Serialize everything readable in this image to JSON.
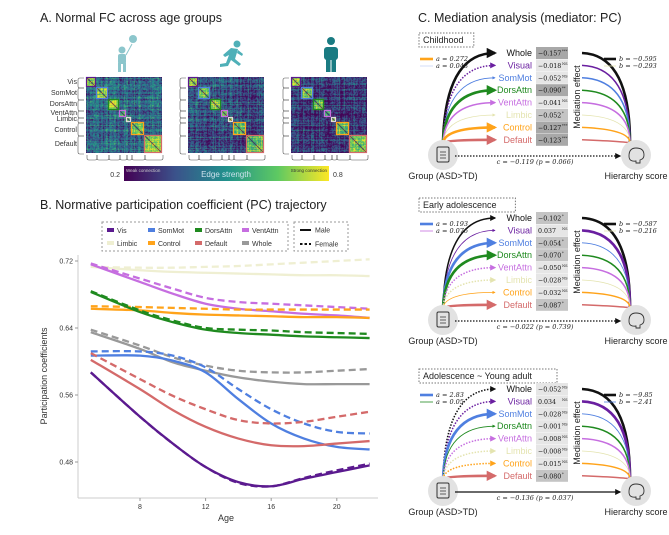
{
  "panel_a": {
    "title": "A. Normal FC across age groups",
    "age_group_icons": [
      "child-with-balloon-icon",
      "running-adolescent-icon",
      "adult-icon"
    ],
    "icon_colors": [
      "#8cc6cc",
      "#4fb0b8",
      "#1a7b82"
    ],
    "networks": [
      "Vis",
      "SomMot",
      "DorsAttn",
      "VentAttn",
      "Limbic",
      "Control",
      "Default"
    ],
    "network_box_colors": [
      "#5b1a8f",
      "#4f7fe0",
      "#1f8a1f",
      "#c66ee0",
      "#dddddd",
      "#ffa31a",
      "#d46a6a"
    ],
    "colorbar": {
      "min_label": "0.2",
      "max_label": "0.8",
      "title": "Edge strength",
      "weak_label": "Weak connection",
      "strong_label": "Strong connection",
      "colormap": "viridis"
    }
  },
  "panel_b": {
    "title": "B. Normative participation coefficient (PC) trajectory",
    "legend_networks": [
      {
        "name": "Vis",
        "color": "#5b1a8f"
      },
      {
        "name": "SomMot",
        "color": "#4f7fe0"
      },
      {
        "name": "DorsAttn",
        "color": "#1f8a1f"
      },
      {
        "name": "VentAttn",
        "color": "#c66ee0"
      },
      {
        "name": "Limbic",
        "color": "#efefd2"
      },
      {
        "name": "Control",
        "color": "#ffa31a"
      },
      {
        "name": "Default",
        "color": "#d46a6a"
      },
      {
        "name": "Whole",
        "color": "#999999"
      }
    ],
    "legend_sex": [
      {
        "name": "Male",
        "style": "solid"
      },
      {
        "name": "Female",
        "style": "dashed"
      }
    ]
  },
  "chart_data": {
    "type": "line",
    "xlabel": "Age",
    "ylabel": "Participation coefficients",
    "xlim": [
      4,
      22.5
    ],
    "ylim": [
      0.437,
      0.73
    ],
    "xticks": [
      "8",
      "12",
      "16",
      "20"
    ],
    "yticks": [
      "0.48",
      "0.56",
      "0.64",
      "0.72"
    ],
    "x": [
      5,
      8,
      10,
      12,
      14,
      16,
      18,
      20,
      22
    ],
    "series": [
      {
        "network": "Limbic",
        "sex": "Male",
        "values": [
          0.713,
          0.709,
          0.707,
          0.706,
          0.705,
          0.704,
          0.703,
          0.703,
          0.702
        ]
      },
      {
        "network": "Limbic",
        "sex": "Female",
        "values": [
          0.713,
          0.712,
          0.712,
          0.713,
          0.714,
          0.716,
          0.718,
          0.72,
          0.722
        ]
      },
      {
        "network": "VentAttn",
        "sex": "Male",
        "values": [
          0.716,
          0.695,
          0.681,
          0.669,
          0.663,
          0.66,
          0.657,
          0.655,
          0.652
        ]
      },
      {
        "network": "VentAttn",
        "sex": "Female",
        "values": [
          0.717,
          0.699,
          0.687,
          0.676,
          0.671,
          0.669,
          0.667,
          0.665,
          0.663
        ]
      },
      {
        "network": "Control",
        "sex": "Male",
        "values": [
          0.663,
          0.661,
          0.658,
          0.656,
          0.655,
          0.654,
          0.653,
          0.653,
          0.652
        ]
      },
      {
        "network": "Control",
        "sex": "Female",
        "values": [
          0.666,
          0.665,
          0.664,
          0.663,
          0.662,
          0.662,
          0.662,
          0.662,
          0.662
        ]
      },
      {
        "network": "DorsAttn",
        "sex": "Male",
        "values": [
          0.683,
          0.659,
          0.647,
          0.638,
          0.634,
          0.632,
          0.63,
          0.629,
          0.628
        ]
      },
      {
        "network": "DorsAttn",
        "sex": "Female",
        "values": [
          0.684,
          0.661,
          0.649,
          0.64,
          0.638,
          0.637,
          0.635,
          0.634,
          0.633
        ]
      },
      {
        "network": "Whole",
        "sex": "Male",
        "values": [
          0.635,
          0.615,
          0.599,
          0.589,
          0.581,
          0.576,
          0.573,
          0.573,
          0.573
        ]
      },
      {
        "network": "Whole",
        "sex": "Female",
        "values": [
          0.638,
          0.619,
          0.605,
          0.595,
          0.589,
          0.587,
          0.587,
          0.589,
          0.591
        ]
      },
      {
        "network": "SomMot",
        "sex": "Male",
        "values": [
          0.607,
          0.607,
          0.601,
          0.587,
          0.555,
          0.526,
          0.508,
          0.498,
          0.495
        ]
      },
      {
        "network": "SomMot",
        "sex": "Female",
        "values": [
          0.612,
          0.612,
          0.607,
          0.593,
          0.567,
          0.543,
          0.526,
          0.516,
          0.514
        ]
      },
      {
        "network": "Default",
        "sex": "Male",
        "values": [
          0.602,
          0.567,
          0.542,
          0.522,
          0.508,
          0.5,
          0.499,
          0.502,
          0.505
        ]
      },
      {
        "network": "Default",
        "sex": "Female",
        "values": [
          0.61,
          0.579,
          0.559,
          0.543,
          0.53,
          0.526,
          0.528,
          0.534,
          0.54
        ]
      },
      {
        "network": "Vis",
        "sex": "Male",
        "values": [
          0.587,
          0.534,
          0.502,
          0.474,
          0.456,
          0.451,
          0.46,
          0.468,
          0.476
        ]
      },
      {
        "network": "Vis",
        "sex": "Female",
        "values": [
          0.587,
          0.534,
          0.502,
          0.474,
          0.455,
          0.451,
          0.461,
          0.47,
          0.478
        ]
      }
    ]
  },
  "panel_c": {
    "title": "C. Mediation analysis (mediator: PC)",
    "group_label": "Group (ASD>TD)",
    "outcome_label": "Hierarchy score",
    "effect_axis_label": "Mediation effect",
    "row_labels": [
      "Whole",
      "Visual",
      "SomMot",
      "DorsAttn",
      "VentAttn",
      "Limbic",
      "Control",
      "Default"
    ],
    "row_colors": [
      "#111111",
      "#6a1fa0",
      "#4f7fe0",
      "#1f8a1f",
      "#c66ee0",
      "#e4e4b0",
      "#ffa31a",
      "#d46a6a"
    ],
    "panels": [
      {
        "label": "Childhood",
        "a_legend": [
          {
            "text": "a = 0.272",
            "color": "#ffa31a",
            "weight": "strong"
          },
          {
            "text": "a = 0.048",
            "color": "#c9d6f5",
            "weight": "weak"
          }
        ],
        "b_legend": [
          {
            "text": "b = −0.595",
            "color": "#111111",
            "weight": "strong"
          },
          {
            "text": "b = −0.293",
            "color": "#e4e4b0",
            "weight": "weak"
          }
        ],
        "effects": [
          {
            "value": "−0.157",
            "sig": "***"
          },
          {
            "value": "−0.018",
            "sig": "NS"
          },
          {
            "value": "−0.052",
            "sig": "NS"
          },
          {
            "value": "−0.090",
            "sig": "**"
          },
          {
            "value": "−0.041",
            "sig": "NS"
          },
          {
            "value": "−0.052",
            "sig": "*"
          },
          {
            "value": "−0.127",
            "sig": "***"
          },
          {
            "value": "−0.123",
            "sig": "***"
          }
        ],
        "a_paths": [
          {
            "w": "strong",
            "dashed": false
          },
          {
            "w": "mid",
            "dashed": true
          },
          {
            "w": "weak",
            "dashed": false
          },
          {
            "w": "strong",
            "dashed": false
          },
          {
            "w": "mid",
            "dashed": false
          },
          {
            "w": "weak",
            "dashed": false
          },
          {
            "w": "strong",
            "dashed": false
          },
          {
            "w": "strong",
            "dashed": false
          }
        ],
        "b_paths": [
          {
            "w": "strong"
          },
          {
            "w": "mid"
          },
          {
            "w": "mid"
          },
          {
            "w": "mid"
          },
          {
            "w": "mid"
          },
          {
            "w": "weak"
          },
          {
            "w": "mid"
          },
          {
            "w": "mid"
          }
        ],
        "direct": {
          "text": "c = −0.119 (p = 0.066)",
          "dashed": true
        }
      },
      {
        "label": "Early adolescence",
        "a_legend": [
          {
            "text": "a = 0.193",
            "color": "#4f7fe0",
            "weight": "strong"
          },
          {
            "text": "a = 0.076",
            "color": "#c66ee0",
            "weight": "weak"
          }
        ],
        "b_legend": [
          {
            "text": "b = −0.587",
            "color": "#111111",
            "weight": "strong"
          },
          {
            "text": "b = −0.216",
            "color": "#e4e4b0",
            "weight": "weak"
          }
        ],
        "effects": [
          {
            "value": "−0.102",
            "sig": "*"
          },
          {
            "value": "0.037",
            "sig": "NS"
          },
          {
            "value": "−0.054",
            "sig": "*"
          },
          {
            "value": "−0.070",
            "sig": "*"
          },
          {
            "value": "−0.050",
            "sig": "NS"
          },
          {
            "value": "−0.028",
            "sig": "NS"
          },
          {
            "value": "−0.032",
            "sig": "NS"
          },
          {
            "value": "−0.087",
            "sig": "*"
          }
        ],
        "a_paths": [
          {
            "w": "mid",
            "dashed": false
          },
          {
            "w": "weak",
            "dashed": false
          },
          {
            "w": "strong",
            "dashed": false
          },
          {
            "w": "strong",
            "dashed": false
          },
          {
            "w": "mid",
            "dashed": true
          },
          {
            "w": "mid",
            "dashed": true
          },
          {
            "w": "weak",
            "dashed": false
          },
          {
            "w": "strong",
            "dashed": false
          }
        ],
        "b_paths": [
          {
            "w": "strong"
          },
          {
            "w": "strong"
          },
          {
            "w": "weak"
          },
          {
            "w": "mid"
          },
          {
            "w": "mid"
          },
          {
            "w": "weak"
          },
          {
            "w": "mid"
          },
          {
            "w": "mid"
          }
        ],
        "direct": {
          "text": "c = −0.022 (p = 0.739)",
          "dashed": true
        }
      },
      {
        "label": "Adolescence ~ Young adult",
        "a_legend": [
          {
            "text": "a = 2.83",
            "color": "#4f7fe0",
            "weight": "strong"
          },
          {
            "text": "a = 0.05",
            "color": "#1f8a1f",
            "weight": "weak"
          }
        ],
        "b_legend": [
          {
            "text": "b = −9.85",
            "color": "#111111",
            "weight": "strong"
          },
          {
            "text": "b = −2.41",
            "color": "#4f7fe0",
            "weight": "weak"
          }
        ],
        "effects": [
          {
            "value": "−0.052",
            "sig": "NS"
          },
          {
            "value": "0.034",
            "sig": "NS"
          },
          {
            "value": "−0.028",
            "sig": "NS"
          },
          {
            "value": "−0.001",
            "sig": "NS"
          },
          {
            "value": "−0.008",
            "sig": "NS"
          },
          {
            "value": "−0.008",
            "sig": "NS"
          },
          {
            "value": "−0.015",
            "sig": "NS"
          },
          {
            "value": "−0.080",
            "sig": "*"
          }
        ],
        "a_paths": [
          {
            "w": "mid",
            "dashed": true
          },
          {
            "w": "mid",
            "dashed": true
          },
          {
            "w": "strong",
            "dashed": false
          },
          {
            "w": "weak",
            "dashed": false
          },
          {
            "w": "mid",
            "dashed": true
          },
          {
            "w": "mid",
            "dashed": true
          },
          {
            "w": "mid",
            "dashed": true
          },
          {
            "w": "strong",
            "dashed": false
          }
        ],
        "b_paths": [
          {
            "w": "strong"
          },
          {
            "w": "strong"
          },
          {
            "w": "weak"
          },
          {
            "w": "mid"
          },
          {
            "w": "mid"
          },
          {
            "w": "weak"
          },
          {
            "w": "mid"
          },
          {
            "w": "mid"
          }
        ],
        "direct": {
          "text": "c = −0.136 (p = 0.037)",
          "dashed": false
        }
      }
    ]
  }
}
